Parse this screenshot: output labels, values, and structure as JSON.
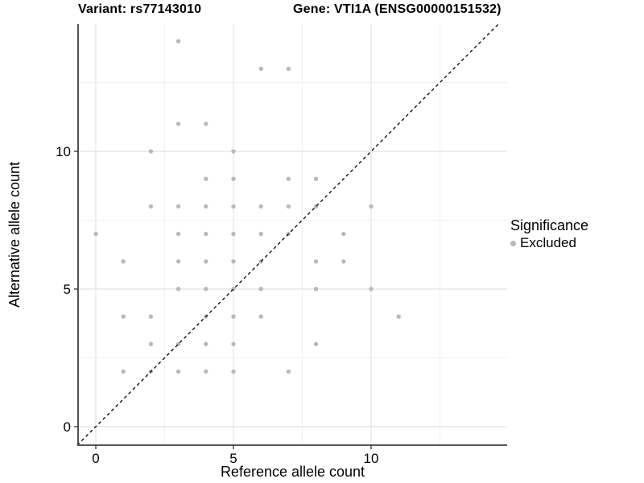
{
  "titles": {
    "left": "Variant: rs77143010",
    "right": "Gene: VTI1A (ENSG00000151532)"
  },
  "chart_data": {
    "type": "scatter",
    "xlabel": "Reference allele count",
    "ylabel": "Alternative allele count",
    "x_ticks": [
      "0",
      "5",
      "10"
    ],
    "x_tick_values": [
      0,
      5,
      10
    ],
    "y_ticks": [
      "0",
      "5",
      "10"
    ],
    "y_tick_values": [
      0,
      5,
      10
    ],
    "minor_gridline_values": [
      2.5,
      7.5,
      12.5
    ],
    "xlim": [
      -0.65,
      14.9
    ],
    "ylim": [
      -0.65,
      14.6
    ],
    "grid": "major and minor, light gray, white panel, black left/bottom axis lines only",
    "identity_line": {
      "equation": "y = x",
      "style": "dashed",
      "color": "#000000"
    },
    "legend": {
      "title": "Significance",
      "position": "right",
      "items": [
        {
          "label": "Excluded",
          "color": "#b9b9b9"
        }
      ]
    },
    "series": [
      {
        "name": "Excluded",
        "points": [
          [
            3,
            14
          ],
          [
            6,
            13
          ],
          [
            7,
            13
          ],
          [
            3,
            11
          ],
          [
            4,
            11
          ],
          [
            2,
            10
          ],
          [
            5,
            10
          ],
          [
            4,
            9
          ],
          [
            5,
            9
          ],
          [
            7,
            9
          ],
          [
            8,
            9
          ],
          [
            2,
            8
          ],
          [
            3,
            8
          ],
          [
            4,
            8
          ],
          [
            5,
            8
          ],
          [
            6,
            8
          ],
          [
            7,
            8
          ],
          [
            8,
            8
          ],
          [
            10,
            8
          ],
          [
            0,
            7
          ],
          [
            3,
            7
          ],
          [
            4,
            7
          ],
          [
            5,
            7
          ],
          [
            6,
            7
          ],
          [
            7,
            7
          ],
          [
            9,
            7
          ],
          [
            1,
            6
          ],
          [
            3,
            6
          ],
          [
            4,
            6
          ],
          [
            5,
            6
          ],
          [
            6,
            6
          ],
          [
            8,
            6
          ],
          [
            9,
            6
          ],
          [
            3,
            5
          ],
          [
            4,
            5
          ],
          [
            5,
            5
          ],
          [
            6,
            5
          ],
          [
            8,
            5
          ],
          [
            10,
            5
          ],
          [
            1,
            4
          ],
          [
            2,
            4
          ],
          [
            4,
            4
          ],
          [
            5,
            4
          ],
          [
            6,
            4
          ],
          [
            11,
            4
          ],
          [
            2,
            3
          ],
          [
            3,
            3
          ],
          [
            4,
            3
          ],
          [
            5,
            3
          ],
          [
            8,
            3
          ],
          [
            1,
            2
          ],
          [
            2,
            2
          ],
          [
            3,
            2
          ],
          [
            4,
            2
          ],
          [
            5,
            2
          ],
          [
            7,
            2
          ]
        ]
      }
    ]
  },
  "colors": {
    "point": "#b9b9b9",
    "major_grid": "#e4e4e4",
    "minor_grid": "#f1f1f1",
    "axis_line": "#3f3f3f",
    "tick": "#333333",
    "text": "#000000",
    "background": "#ffffff"
  }
}
